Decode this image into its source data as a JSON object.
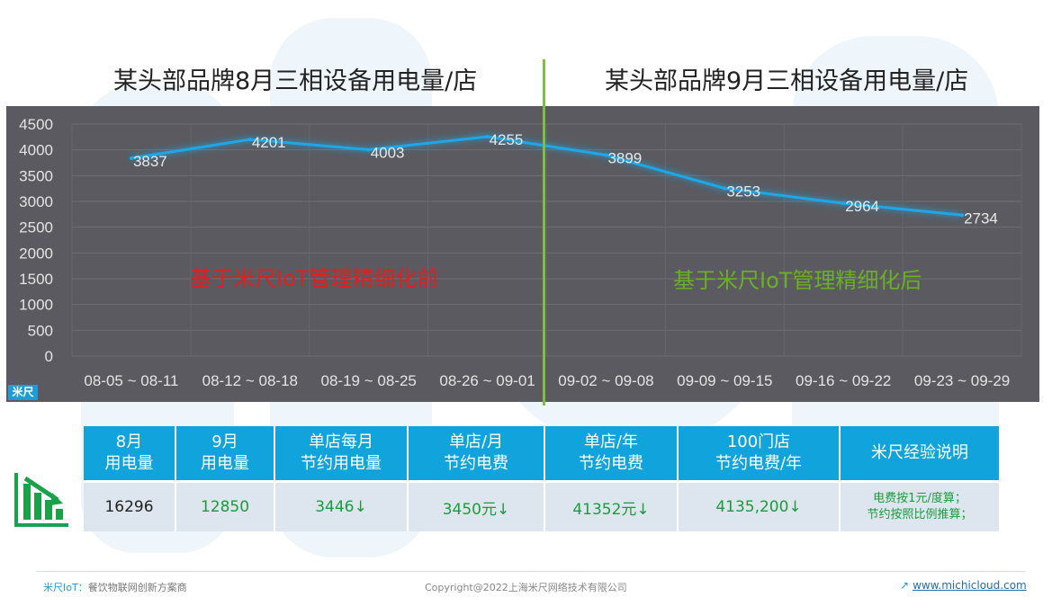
{
  "titles": {
    "left": "某头部品牌8月三相设备用电量/店",
    "right": "某头部品牌9月三相设备用电量/店"
  },
  "annotations": {
    "before": "基于米尺IoT管理精细化前",
    "after": "基于米尺IoT管理精细化后"
  },
  "logo_badge": "米尺",
  "chart_data": {
    "type": "line",
    "categories": [
      "08-05 ~ 08-11",
      "08-12 ~ 08-18",
      "08-19 ~ 08-25",
      "08-26 ~ 09-01",
      "09-02 ~ 09-08",
      "09-09 ~ 09-15",
      "09-16 ~ 09-22",
      "09-23 ~ 09-29"
    ],
    "values": [
      3837,
      4201,
      4003,
      4255,
      3899,
      3253,
      2964,
      2734
    ],
    "yticks": [
      0,
      500,
      1000,
      1500,
      2000,
      2500,
      3000,
      3500,
      4000,
      4500
    ],
    "ylim": [
      0,
      4500
    ],
    "grid": true,
    "line_color": "#1ea8e8"
  },
  "table": {
    "headers": [
      "8月\n用电量",
      "9月\n用电量",
      "单店每月\n节约用电量",
      "单店/月\n节约电费",
      "单店/年\n节约电费",
      "100门店\n节约电费/年",
      "米尺经验说明"
    ],
    "row": [
      "16296",
      "12850",
      "3446↓",
      "3450元↓",
      "41352元↓",
      "4135,200↓",
      "电费按1元/度算；\n节约按照比例推算；"
    ]
  },
  "colors": {
    "header_bg": "#11a4dc",
    "value_green": "#1a9b3c",
    "annot_red": "#e02020",
    "annot_green": "#6ab023",
    "divider": "#7ac143"
  },
  "footer": {
    "brand": "米尺IoT：",
    "tagline": "餐饮物联网创新方案商",
    "copyright": "Copyright@2022上海米尺网络技术有限公司",
    "link": "www.michicloud.com"
  }
}
